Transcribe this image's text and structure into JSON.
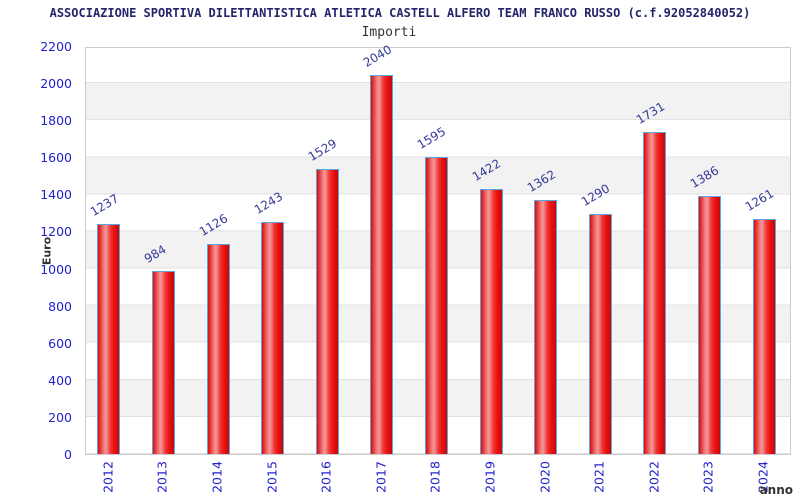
{
  "header": {
    "title": "ASSOCIAZIONE SPORTIVA DILETTANTISTICA ATLETICA CASTELL ALFERO TEAM FRANCO RUSSO (c.f.92052840052)",
    "subtitle": "Importi"
  },
  "chart_data": {
    "type": "bar",
    "title": "Importi",
    "xlabel": "anno",
    "ylabel": "Euro",
    "categories": [
      "2012",
      "2013",
      "2014",
      "2015",
      "2016",
      "2017",
      "2018",
      "2019",
      "2020",
      "2021",
      "2022",
      "2023",
      "2024"
    ],
    "values": [
      1237,
      984,
      1126,
      1243,
      1529,
      2040,
      1595,
      1422,
      1362,
      1290,
      1731,
      1386,
      1261
    ],
    "ylim": [
      0,
      2200
    ],
    "y_tick_step": 200,
    "y_ticks": [
      0,
      200,
      400,
      600,
      800,
      1000,
      1200,
      1400,
      1600,
      1800,
      2000,
      2200
    ],
    "grid": "horizontal-bands-alternating",
    "legend": "none",
    "value_labels": "rotated-above-bars",
    "colors": {
      "bar_fill": "#e81111",
      "bar_fill_highlight": "#f59898",
      "bar_border": "#58a7e0",
      "value_label": "#333a99",
      "tick_label": "#2222cc",
      "title": "#24246a",
      "subtitle": "#333333",
      "band_gray": "#f2f2f2",
      "grid_line": "#e2e2e2",
      "plot_border": "#cccccc"
    }
  }
}
